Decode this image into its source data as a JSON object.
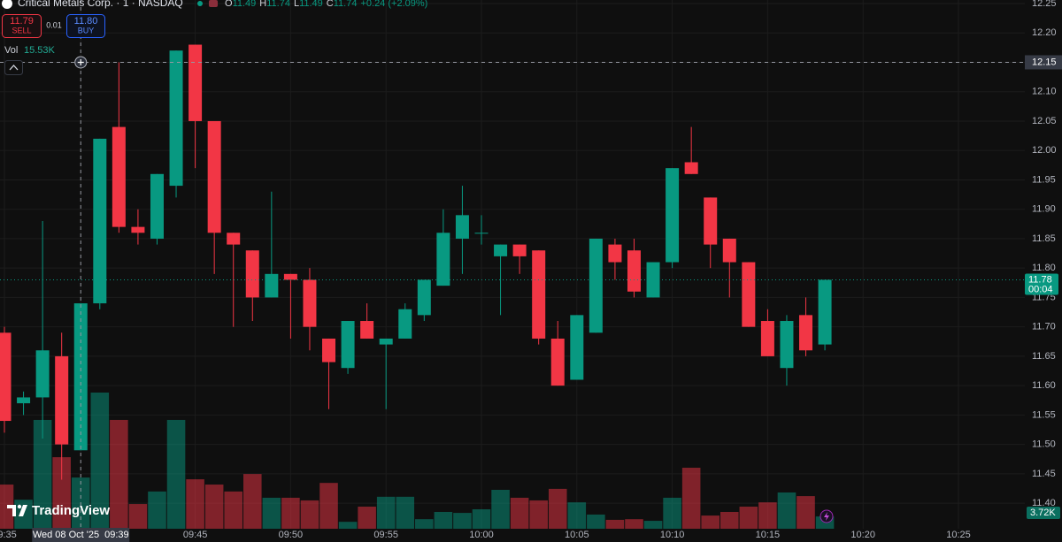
{
  "header": {
    "symbol": "Critical Metals Corp. · 1 · NASDAQ",
    "ohlc_letters": [
      "O",
      "H",
      "L",
      "C"
    ],
    "change": "+0.24 (+2.09%)",
    "sell_price": "11.79",
    "sell_label": "SELL",
    "spread": 0.01,
    "buy_price": "11.80",
    "buy_label": "BUY",
    "vol_label": "Vol",
    "watermark": "TradingView"
  },
  "chart_data": {
    "type": "candlestick",
    "categories": [
      "09:35",
      null,
      null,
      null,
      "09:39",
      null,
      null,
      null,
      null,
      null,
      "09:45",
      null,
      null,
      null,
      null,
      "09:50",
      null,
      null,
      null,
      null,
      "09:55",
      null,
      null,
      null,
      null,
      "10:00",
      null,
      null,
      null,
      null,
      "10:05",
      null,
      null,
      null,
      null,
      "10:10",
      null,
      null,
      null,
      null,
      "10:15",
      null,
      null,
      null,
      null,
      "10:20",
      null,
      null,
      null,
      null,
      "10:25"
    ],
    "open": [
      11.69,
      11.57,
      11.58,
      11.65,
      11.49,
      11.74,
      12.04,
      11.87,
      11.85,
      11.94,
      12.18,
      12.05,
      11.86,
      11.83,
      11.75,
      11.79,
      11.78,
      11.68,
      11.63,
      11.71,
      11.67,
      11.68,
      11.72,
      11.77,
      11.85,
      11.86,
      11.82,
      11.84,
      11.83,
      11.68,
      11.61,
      11.69,
      11.84,
      11.83,
      11.75,
      11.81,
      11.98,
      11.92,
      11.85,
      11.81,
      11.71,
      11.63,
      11.72,
      11.67,
      null,
      null,
      null,
      null,
      null,
      null,
      null
    ],
    "high": [
      11.7,
      11.59,
      11.88,
      11.69,
      11.74,
      12.02,
      12.15,
      11.9,
      11.96,
      12.17,
      12.18,
      12.05,
      11.86,
      11.83,
      11.93,
      11.79,
      11.8,
      11.68,
      11.71,
      11.74,
      11.68,
      11.74,
      11.78,
      11.9,
      11.94,
      11.89,
      11.84,
      11.84,
      11.83,
      11.71,
      11.72,
      11.85,
      11.85,
      11.85,
      11.81,
      11.97,
      12.04,
      11.92,
      11.85,
      11.81,
      11.73,
      11.72,
      11.75,
      11.78,
      null,
      null,
      null,
      null,
      null,
      null,
      null
    ],
    "low": [
      11.52,
      11.55,
      11.51,
      11.44,
      11.49,
      11.73,
      11.86,
      11.84,
      11.84,
      11.92,
      11.97,
      11.79,
      11.7,
      11.71,
      11.75,
      11.68,
      11.66,
      11.56,
      11.62,
      11.68,
      11.56,
      11.68,
      11.71,
      11.77,
      11.79,
      11.84,
      11.72,
      11.79,
      11.67,
      11.6,
      11.61,
      11.69,
      11.78,
      11.75,
      11.75,
      11.8,
      11.96,
      11.8,
      11.75,
      11.7,
      11.65,
      11.6,
      11.65,
      11.66,
      null,
      null,
      null,
      null,
      null,
      null,
      null
    ],
    "close": [
      11.54,
      11.58,
      11.66,
      11.5,
      11.74,
      12.02,
      11.87,
      11.86,
      11.96,
      12.17,
      12.05,
      11.86,
      11.84,
      11.75,
      11.79,
      11.78,
      11.7,
      11.64,
      11.71,
      11.68,
      11.68,
      11.73,
      11.78,
      11.86,
      11.89,
      11.86,
      11.84,
      11.82,
      11.68,
      11.6,
      11.72,
      11.85,
      11.81,
      11.76,
      11.81,
      11.97,
      11.96,
      11.84,
      11.81,
      11.7,
      11.65,
      11.71,
      11.66,
      11.78,
      null,
      null,
      null,
      null,
      null,
      null,
      null
    ],
    "volume": {
      "values": [
        13.4,
        8.8,
        33,
        21.7,
        15.53,
        41.3,
        33,
        7.5,
        11.3,
        33,
        15,
        13.4,
        11.3,
        16.6,
        9.4,
        9.4,
        8.6,
        13.9,
        2.1,
        6.7,
        9.7,
        9.7,
        2.9,
        5.1,
        4.8,
        5.9,
        11.8,
        9.4,
        8.6,
        12.1,
        8.0,
        4.3,
        2.7,
        2.9,
        2.4,
        9.4,
        18.5,
        4.0,
        5.1,
        6.7,
        8.0,
        11.0,
        9.9,
        3.72,
        null,
        null,
        null,
        null,
        null,
        null,
        null
      ],
      "value_labels": [
        null,
        null,
        null,
        null,
        "15.53K",
        null,
        null,
        null,
        null,
        null,
        null,
        null,
        null,
        null,
        null,
        null,
        null,
        null,
        null,
        null,
        null,
        null,
        null,
        null,
        null,
        null,
        null,
        null,
        null,
        null,
        null,
        null,
        null,
        null,
        null,
        null,
        null,
        null,
        null,
        null,
        null,
        null,
        null,
        "3.72K",
        null,
        null,
        null,
        null,
        null,
        null,
        null
      ]
    },
    "up_color": "#089981",
    "down_color": "#f23645",
    "ylim": [
      11.334,
      12.256
    ],
    "yticks": [
      {
        "value": 11.4,
        "label": "11.40"
      },
      11.45,
      {
        "value": 11.5,
        "label": "11.50"
      },
      11.55,
      {
        "value": 11.6,
        "label": "11.60"
      },
      11.65,
      {
        "value": 11.7,
        "label": "11.70"
      },
      11.75,
      {
        "value": 11.8,
        "label": "11.80"
      },
      11.85,
      {
        "value": 11.9,
        "label": "11.90"
      },
      11.95,
      {
        "value": 12.0,
        "label": "12.00"
      },
      12.05,
      {
        "value": 12.1,
        "label": "12.10"
      },
      12.15,
      {
        "value": 12.2,
        "label": "12.20"
      },
      12.25
    ],
    "grid": true,
    "crosshair": {
      "price": 12.15,
      "date": "Wed 08 Oct '25"
    },
    "last_price": {
      "value": 11.78,
      "countdown": "00:04"
    }
  }
}
